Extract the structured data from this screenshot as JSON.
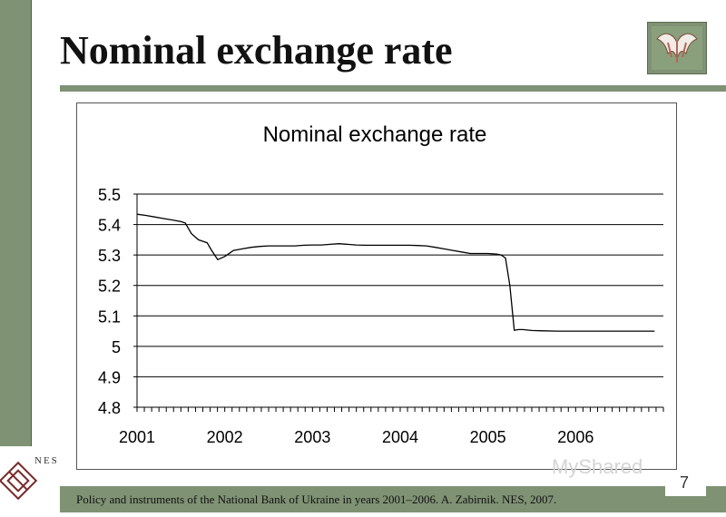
{
  "slide": {
    "title": "Nominal exchange rate",
    "footer": "Policy and instruments of the National Bank of Ukraine in years 2001–2006. A. Zabirnik. NES, 2007.",
    "page_number": "7",
    "logo_text": "NES",
    "watermark": "MyShared",
    "colors": {
      "accent": "#7f9274",
      "line": "#000000"
    },
    "icons": {
      "corner_logo": "emblem-icon",
      "nes_logo": "nes-logo-icon"
    }
  },
  "chart_data": {
    "type": "line",
    "title": "Nominal exchange rate",
    "xlabel": "",
    "ylabel": "",
    "x_tick_labels": [
      "2001",
      "2002",
      "2003",
      "2004",
      "2005",
      "2006"
    ],
    "y_tick_labels": [
      "4.8",
      "4.9",
      "5",
      "5.1",
      "5.2",
      "5.3",
      "5.4",
      "5.5"
    ],
    "xlim": [
      2001,
      2007
    ],
    "ylim": [
      4.8,
      5.5
    ],
    "grid": "horizontal",
    "legend": "none",
    "series": [
      {
        "x": [
          2001.0,
          2001.1,
          2001.2,
          2001.3,
          2001.4,
          2001.5,
          2001.55,
          2001.62,
          2001.7,
          2001.75,
          2001.8,
          2001.85,
          2001.92,
          2002.0,
          2002.1,
          2002.2,
          2002.3,
          2002.4,
          2002.5,
          2002.6,
          2002.7,
          2002.8,
          2002.9,
          2003.0,
          2003.1,
          2003.2,
          2003.3,
          2003.4,
          2003.5,
          2003.6,
          2003.7,
          2003.8,
          2003.9,
          2004.0,
          2004.1,
          2004.2,
          2004.3,
          2004.4,
          2004.5,
          2004.6,
          2004.7,
          2004.8,
          2004.9,
          2005.0,
          2005.1,
          2005.15,
          2005.2,
          2005.25,
          2005.3,
          2005.35,
          2005.4,
          2005.5,
          2005.6,
          2005.8,
          2006.0,
          2006.5,
          2006.9
        ],
        "values": [
          5.434,
          5.43,
          5.425,
          5.42,
          5.415,
          5.41,
          5.405,
          5.37,
          5.35,
          5.345,
          5.34,
          5.315,
          5.285,
          5.295,
          5.315,
          5.32,
          5.325,
          5.328,
          5.33,
          5.33,
          5.33,
          5.33,
          5.332,
          5.333,
          5.333,
          5.335,
          5.337,
          5.335,
          5.333,
          5.332,
          5.332,
          5.332,
          5.332,
          5.332,
          5.332,
          5.331,
          5.33,
          5.325,
          5.32,
          5.315,
          5.31,
          5.305,
          5.305,
          5.305,
          5.303,
          5.3,
          5.29,
          5.2,
          5.053,
          5.055,
          5.055,
          5.052,
          5.051,
          5.05,
          5.05,
          5.05,
          5.05
        ]
      }
    ]
  }
}
